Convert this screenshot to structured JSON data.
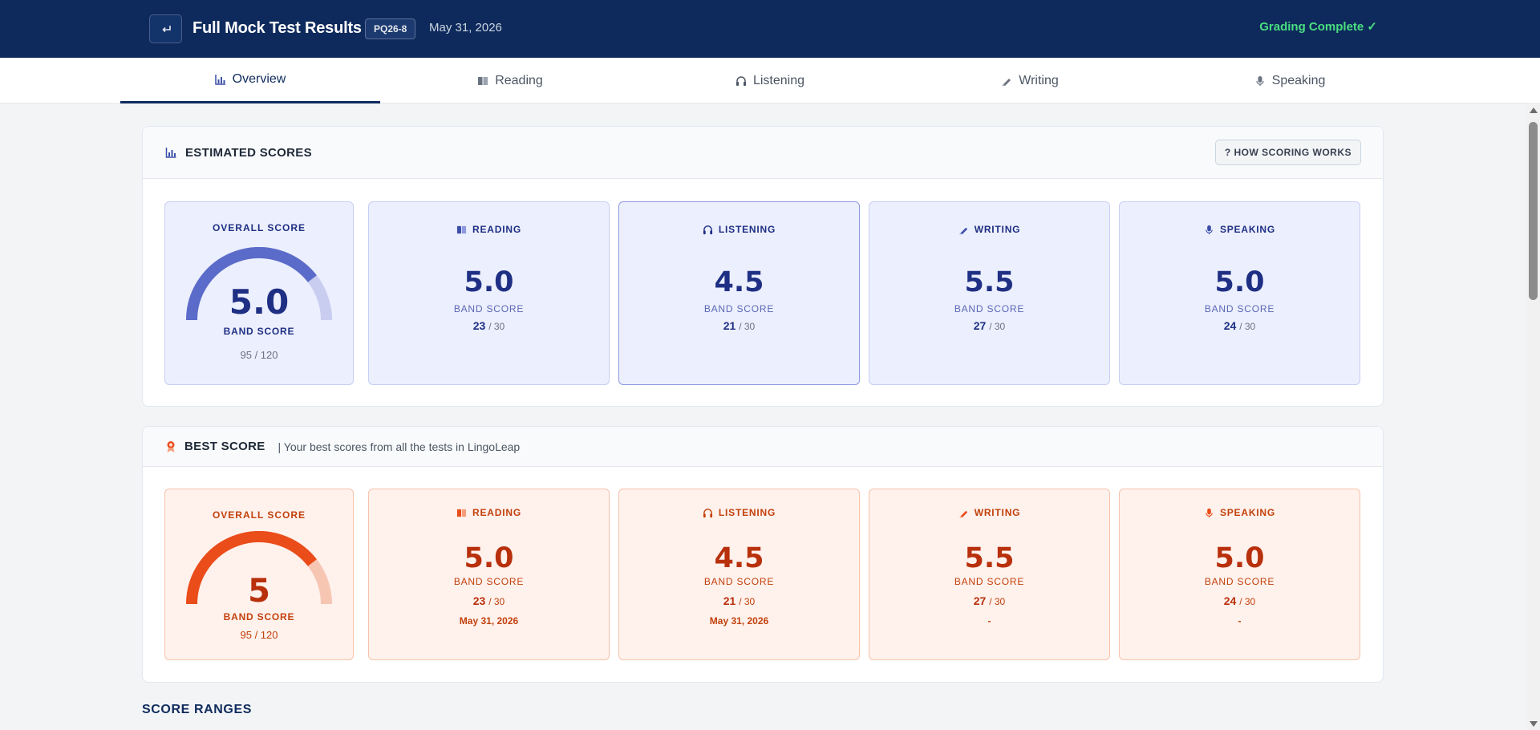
{
  "header": {
    "title": "Full Mock Test Results",
    "test_code": "PQ26-8",
    "date": "May 31, 2026",
    "status": "Grading Complete ✓"
  },
  "tabs": [
    {
      "label": "Overview",
      "icon": "chart-icon",
      "active": true
    },
    {
      "label": "Reading",
      "icon": "book-icon"
    },
    {
      "label": "Listening",
      "icon": "headphones-icon"
    },
    {
      "label": "Writing",
      "icon": "pen-icon"
    },
    {
      "label": "Speaking",
      "icon": "microphone-icon"
    }
  ],
  "estimated": {
    "title": "ESTIMATED SCORES",
    "help_button": "? HOW SCORING WORKS",
    "overall": {
      "label": "OVERALL SCORE",
      "value": "5.0",
      "band_label": "BAND SCORE",
      "raw": "95 / 120",
      "fraction": 0.79
    },
    "sections": [
      {
        "name": "READING",
        "value": "5.0",
        "band_label": "BAND SCORE",
        "score": "23",
        "total": "/ 30"
      },
      {
        "name": "LISTENING",
        "value": "4.5",
        "band_label": "BAND SCORE",
        "score": "21",
        "total": "/ 30"
      },
      {
        "name": "WRITING",
        "value": "5.5",
        "band_label": "BAND SCORE",
        "score": "27",
        "total": "/ 30"
      },
      {
        "name": "SPEAKING",
        "value": "5.0",
        "band_label": "BAND SCORE",
        "score": "24",
        "total": "/ 30"
      }
    ]
  },
  "best": {
    "title": "BEST SCORE",
    "subtitle": "| Your best scores from all the tests in LingoLeap",
    "overall": {
      "label": "OVERALL SCORE",
      "value": "5",
      "band_label": "BAND SCORE",
      "raw": "95 / 120",
      "fraction": 0.79
    },
    "sections": [
      {
        "name": "READING",
        "value": "5.0",
        "band_label": "BAND SCORE",
        "score": "23",
        "total": "/ 30",
        "date": "May 31, 2026"
      },
      {
        "name": "LISTENING",
        "value": "4.5",
        "band_label": "BAND SCORE",
        "score": "21",
        "total": "/ 30",
        "date": "May 31, 2026"
      },
      {
        "name": "WRITING",
        "value": "5.5",
        "band_label": "BAND SCORE",
        "score": "27",
        "total": "/ 30",
        "date": "-"
      },
      {
        "name": "SPEAKING",
        "value": "5.0",
        "band_label": "BAND SCORE",
        "score": "24",
        "total": "/ 30",
        "date": "-"
      }
    ]
  },
  "score_ranges": {
    "title": "SCORE RANGES"
  },
  "colors": {
    "navy": "#0e2a5c",
    "blue_accent": "#5b6bc9",
    "orange_accent": "#ea4c1a",
    "success": "#4ade80"
  }
}
